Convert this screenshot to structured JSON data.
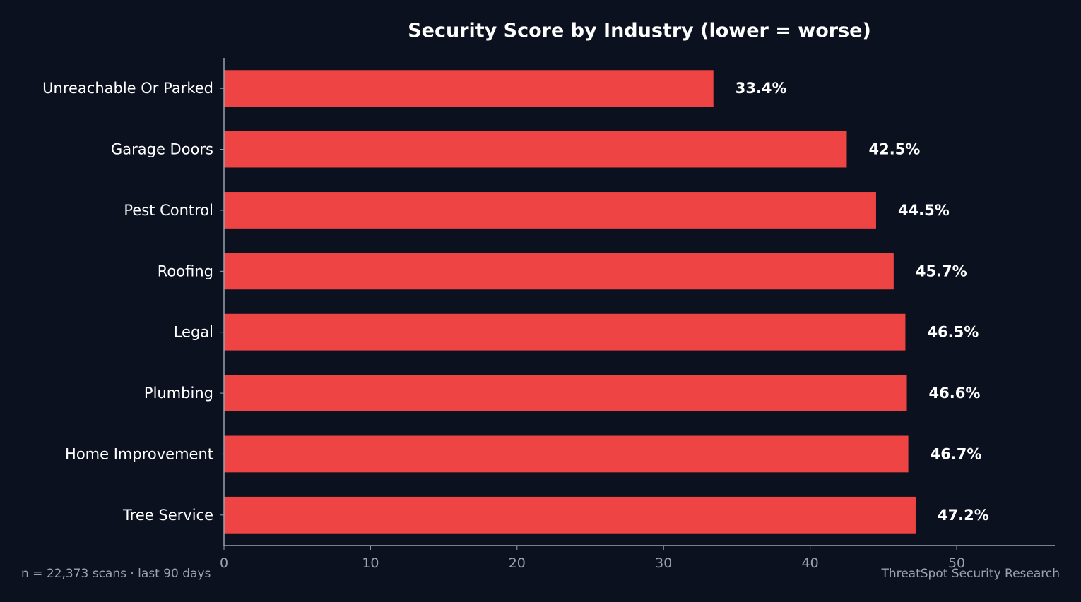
{
  "chart_data": {
    "type": "bar",
    "orientation": "horizontal",
    "title": "Security Score by Industry (lower = worse)",
    "xlabel": "",
    "ylabel": "",
    "categories": [
      "Unreachable Or Parked",
      "Garage Doors",
      "Pest Control",
      "Roofing",
      "Legal",
      "Plumbing",
      "Home Improvement",
      "Tree Service"
    ],
    "values": [
      33.4,
      42.5,
      44.5,
      45.7,
      46.5,
      46.6,
      46.7,
      47.2
    ],
    "data_labels": [
      "33.4%",
      "42.5%",
      "44.5%",
      "45.7%",
      "46.5%",
      "46.6%",
      "46.7%",
      "47.2%"
    ],
    "xlim": [
      0,
      56.7
    ],
    "xticks": [
      0,
      10,
      20,
      30,
      40,
      50
    ],
    "xtick_labels": [
      "0",
      "10",
      "20",
      "30",
      "40",
      "50"
    ],
    "grid": false,
    "legend": "none",
    "colors": {
      "background": "#0c1120",
      "bar": "#ef4444",
      "axis": "#9aa3b2",
      "text": "#ffffff",
      "muted_text": "#9aa3b2"
    }
  },
  "footer": {
    "left": "n = 22,373 scans · last 90 days",
    "right": "ThreatSpot Security Research"
  }
}
